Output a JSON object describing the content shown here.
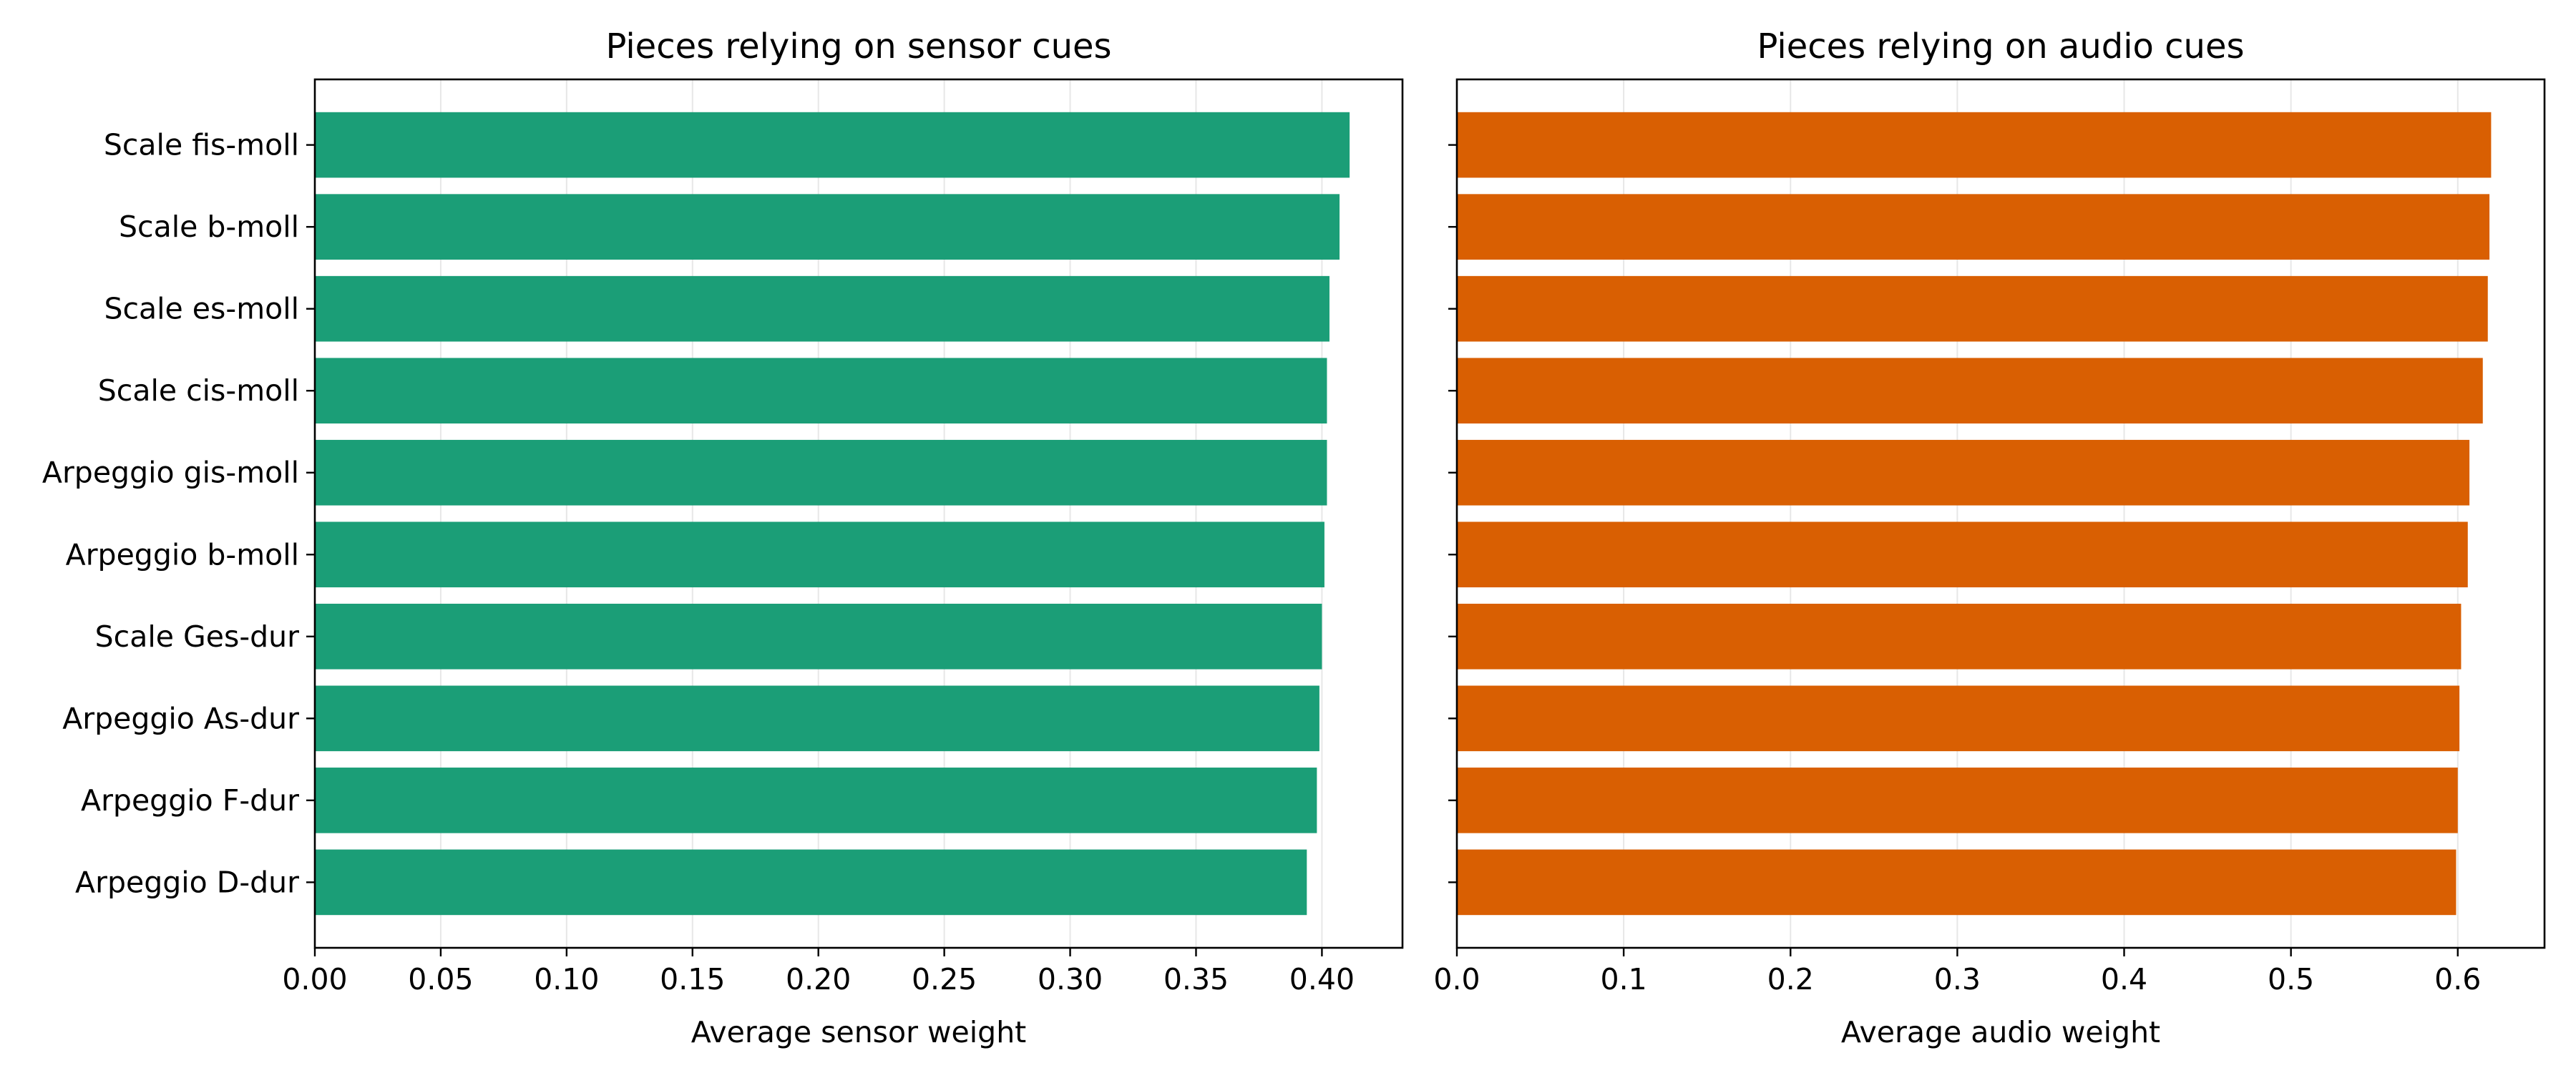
{
  "chart_data": [
    {
      "type": "bar",
      "orientation": "horizontal",
      "title": "Pieces relying on sensor cues",
      "xlabel": "Average sensor weight",
      "ylabel": "",
      "categories": [
        "Scale fis-moll",
        "Scale b-moll",
        "Scale es-moll",
        "Scale cis-moll",
        "Arpeggio gis-moll",
        "Arpeggio b-moll",
        "Scale Ges-dur",
        "Arpeggio As-dur",
        "Arpeggio F-dur",
        "Arpeggio D-dur"
      ],
      "values": [
        0.411,
        0.407,
        0.403,
        0.402,
        0.402,
        0.401,
        0.4,
        0.399,
        0.398,
        0.394
      ],
      "xlim": [
        0,
        0.432
      ],
      "xticks": [
        0,
        0.05,
        0.1,
        0.15,
        0.2,
        0.25,
        0.3,
        0.35,
        0.4
      ],
      "xtick_labels": [
        "0.00",
        "0.05",
        "0.10",
        "0.15",
        "0.20",
        "0.25",
        "0.30",
        "0.35",
        "0.40"
      ],
      "color": "#1b9e77",
      "grid": "x"
    },
    {
      "type": "bar",
      "orientation": "horizontal",
      "title": "Pieces relying on audio cues",
      "xlabel": "Average audio weight",
      "ylabel": "",
      "categories": [
        "Scale fis-moll",
        "Scale b-moll",
        "Scale es-moll",
        "Scale cis-moll",
        "Arpeggio gis-moll",
        "Arpeggio b-moll",
        "Scale Ges-dur",
        "Arpeggio As-dur",
        "Arpeggio F-dur",
        "Arpeggio D-dur"
      ],
      "values": [
        0.62,
        0.619,
        0.618,
        0.615,
        0.607,
        0.606,
        0.602,
        0.601,
        0.6,
        0.599
      ],
      "xlim": [
        0,
        0.652
      ],
      "xticks": [
        0,
        0.1,
        0.2,
        0.3,
        0.4,
        0.5,
        0.6
      ],
      "xtick_labels": [
        "0.0",
        "0.1",
        "0.2",
        "0.3",
        "0.4",
        "0.5",
        "0.6"
      ],
      "show_category_labels": false,
      "color": "#d95f02",
      "grid": "x"
    }
  ]
}
